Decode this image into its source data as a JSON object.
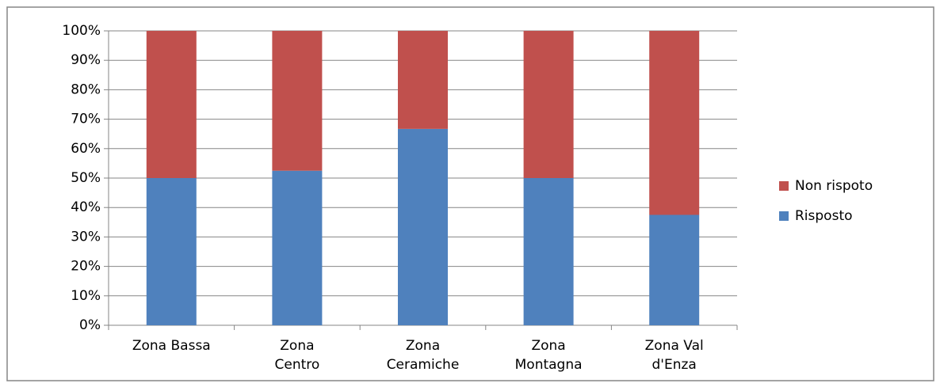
{
  "chart_data": {
    "type": "stacked_bar",
    "categories": [
      "Zona Bassa",
      "Zona\nCentro",
      "Zona\nCeramiche",
      "Zona\nMontagna",
      "Zona Val\nd'Enza"
    ],
    "series": [
      {
        "name": "Risposto",
        "color": "#4f81bd",
        "values": [
          50,
          52.5,
          66.7,
          50,
          37.5
        ]
      },
      {
        "name": "Non rispoto",
        "color": "#c0504d",
        "values": [
          50,
          47.5,
          33.3,
          50,
          62.5
        ]
      }
    ],
    "ylim": [
      0,
      100
    ],
    "yticks": [
      {
        "value": 0,
        "label": "0%"
      },
      {
        "value": 10,
        "label": "10%"
      },
      {
        "value": 20,
        "label": "20%"
      },
      {
        "value": 30,
        "label": "30%"
      },
      {
        "value": 40,
        "label": "40%"
      },
      {
        "value": 50,
        "label": "50%"
      },
      {
        "value": 60,
        "label": "60%"
      },
      {
        "value": 70,
        "label": "70%"
      },
      {
        "value": 80,
        "label": "80%"
      },
      {
        "value": 90,
        "label": "90%"
      },
      {
        "value": 100,
        "label": "100%"
      }
    ],
    "grid": true,
    "legend": "right"
  }
}
